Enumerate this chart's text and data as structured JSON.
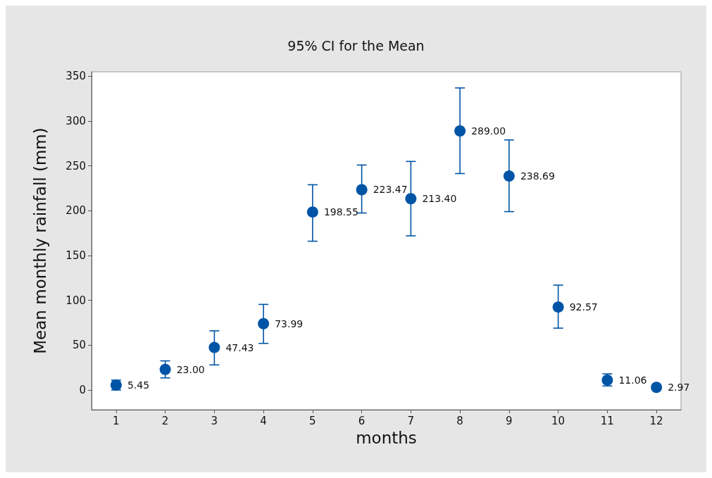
{
  "chart_data": {
    "type": "scatter",
    "title": "95% CI for the Mean",
    "xlabel": "months",
    "ylabel": "Mean monthly rainfall (mm)",
    "x": [
      1,
      2,
      3,
      4,
      5,
      6,
      7,
      8,
      9,
      10,
      11,
      12
    ],
    "xlim": [
      0.5,
      12.5
    ],
    "xticks": [
      1,
      2,
      3,
      4,
      5,
      6,
      7,
      8,
      9,
      10,
      11,
      12
    ],
    "values": [
      5.45,
      23.0,
      47.43,
      73.99,
      198.55,
      223.47,
      213.4,
      289.0,
      238.69,
      92.57,
      11.06,
      2.97
    ],
    "value_labels": [
      "5.45",
      "23.00",
      "47.43",
      "73.99",
      "198.55",
      "223.47",
      "213.40",
      "289.00",
      "238.69",
      "92.57",
      "11.06",
      "2.97"
    ],
    "errors": [
      [
        0,
        11
      ],
      [
        13.5,
        32.5
      ],
      [
        28,
        66
      ],
      [
        52,
        95.5
      ],
      [
        166,
        229
      ],
      [
        197.5,
        251
      ],
      [
        172,
        255
      ],
      [
        241.5,
        337
      ],
      [
        199,
        279
      ],
      [
        69,
        117
      ],
      [
        4.5,
        18
      ],
      null
    ],
    "color": "#0054a6",
    "marker": "circle",
    "ylim": [
      -22,
      355
    ],
    "yticks": [
      0,
      50,
      100,
      150,
      200,
      250,
      300,
      350
    ],
    "grid": false
  }
}
